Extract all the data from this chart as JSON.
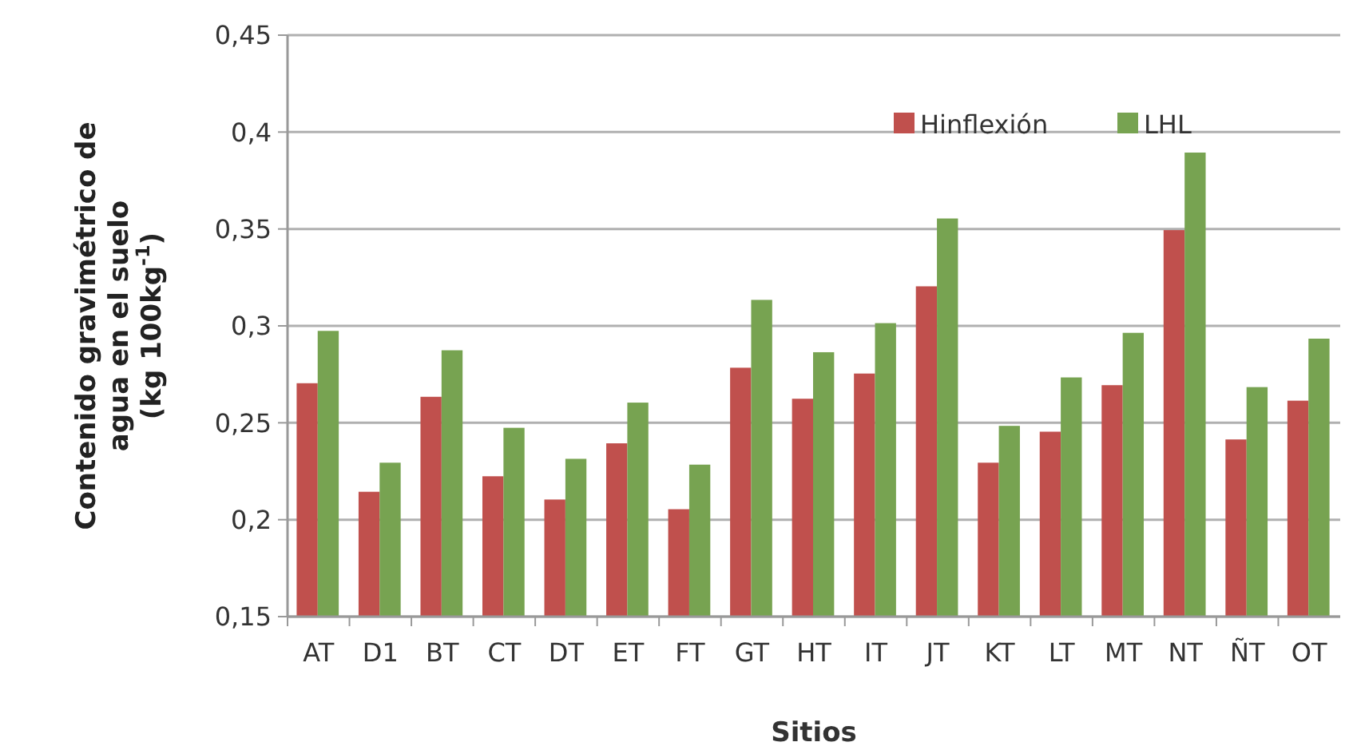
{
  "chart_data": {
    "type": "bar",
    "xlabel": "Sitios",
    "ylabel": "Contenido gravimétrico de\nagua en el suelo\n(kg 100kg$^{-1}$)",
    "categories": [
      "AT",
      "D1",
      "BT",
      "CT",
      "DT",
      "ET",
      "FT",
      "GT",
      "HT",
      "IT",
      "JT",
      "KT",
      "LT",
      "MT",
      "NT",
      "ÑT",
      "OT"
    ],
    "series": [
      {
        "name": "Hinflexión",
        "color": "#c0504d",
        "values": [
          0.27,
          0.214,
          0.263,
          0.222,
          0.21,
          0.239,
          0.205,
          0.278,
          0.262,
          0.275,
          0.32,
          0.229,
          0.245,
          0.269,
          0.349,
          0.241,
          0.261
        ]
      },
      {
        "name": "LHL",
        "color": "#77a351",
        "values": [
          0.297,
          0.229,
          0.287,
          0.247,
          0.231,
          0.26,
          0.228,
          0.313,
          0.286,
          0.301,
          0.355,
          0.248,
          0.273,
          0.296,
          0.389,
          0.268,
          0.293
        ]
      }
    ],
    "ylim": [
      0.15,
      0.45
    ],
    "yticks": [
      {
        "value": 0.15,
        "label": "0,15"
      },
      {
        "value": 0.2,
        "label": "0,2"
      },
      {
        "value": 0.25,
        "label": "0,25"
      },
      {
        "value": 0.3,
        "label": "0,3"
      },
      {
        "value": 0.35,
        "label": "0,35"
      },
      {
        "value": 0.4,
        "label": "0,4"
      },
      {
        "value": 0.45,
        "label": "0,45"
      }
    ],
    "grid": "y",
    "legend": "top right"
  }
}
